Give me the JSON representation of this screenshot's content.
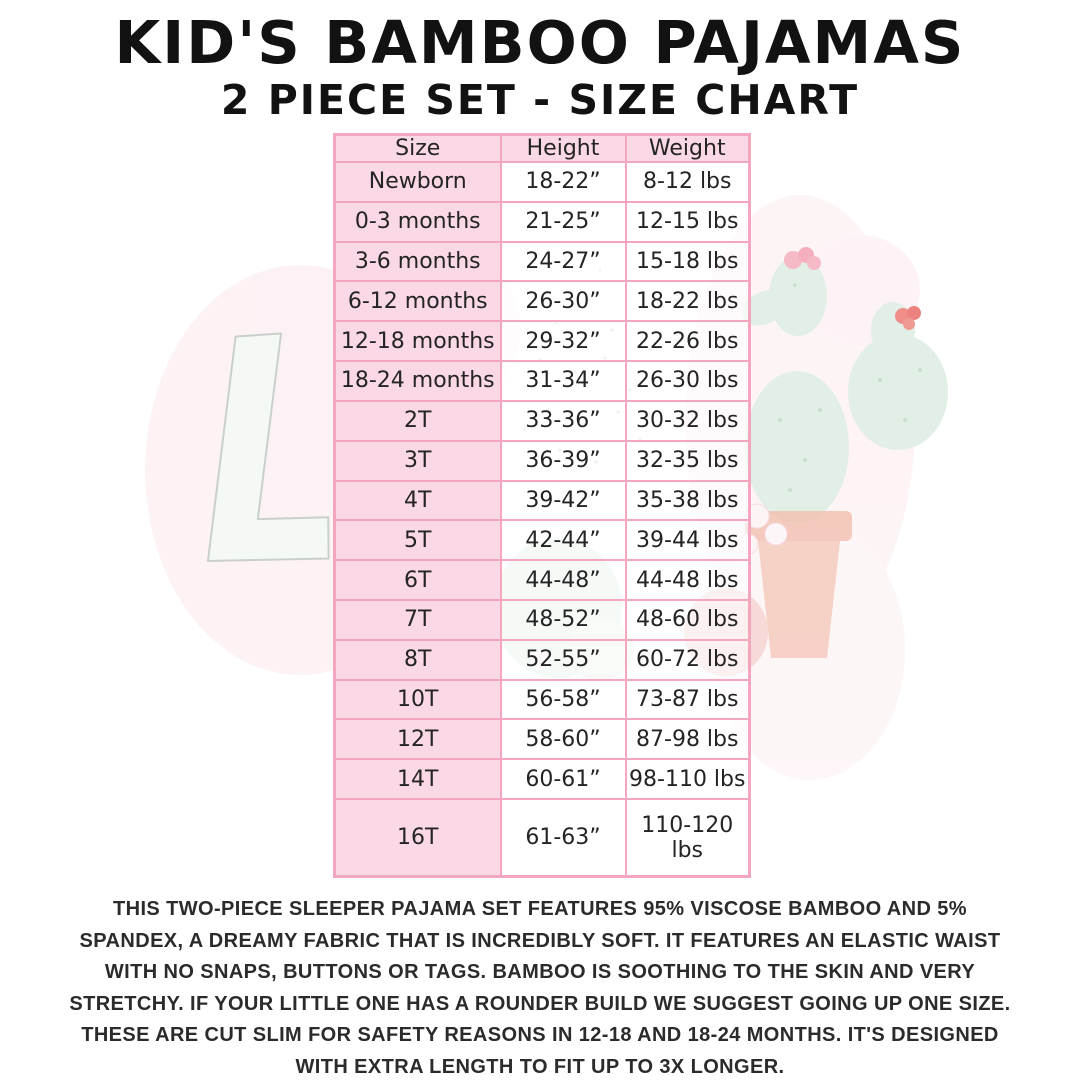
{
  "header": {
    "title": "KID'S BAMBOO PAJAMAS",
    "subtitle": "2 PIECE SET - SIZE CHART"
  },
  "size_chart": {
    "columns": [
      "Size",
      "Height",
      "Weight"
    ],
    "rows": [
      {
        "size": "Newborn",
        "height": "18-22”",
        "weight": "8-12 lbs"
      },
      {
        "size": "0-3 months",
        "height": "21-25”",
        "weight": "12-15 lbs"
      },
      {
        "size": "3-6 months",
        "height": "24-27”",
        "weight": "15-18 lbs"
      },
      {
        "size": "6-12 months",
        "height": "26-30”",
        "weight": "18-22 lbs"
      },
      {
        "size": "12-18 months",
        "height": "29-32”",
        "weight": "22-26 lbs"
      },
      {
        "size": "18-24 months",
        "height": "31-34”",
        "weight": "26-30 lbs"
      },
      {
        "size": "2T",
        "height": "33-36”",
        "weight": "30-32 lbs"
      },
      {
        "size": "3T",
        "height": "36-39”",
        "weight": "32-35 lbs"
      },
      {
        "size": "4T",
        "height": "39-42”",
        "weight": "35-38 lbs"
      },
      {
        "size": "5T",
        "height": "42-44”",
        "weight": "39-44 lbs"
      },
      {
        "size": "6T",
        "height": "44-48”",
        "weight": "44-48 lbs"
      },
      {
        "size": "7T",
        "height": "48-52”",
        "weight": "48-60 lbs"
      },
      {
        "size": "8T",
        "height": "52-55”",
        "weight": "60-72 lbs"
      },
      {
        "size": "10T",
        "height": "56-58”",
        "weight": "73-87 lbs"
      },
      {
        "size": "12T",
        "height": "58-60”",
        "weight": "87-98 lbs"
      },
      {
        "size": "14T",
        "height": "60-61”",
        "weight": "98-110 lbs"
      },
      {
        "size": "16T",
        "height": "61-63”",
        "weight": "110-120 lbs"
      }
    ]
  },
  "chart_data": {
    "type": "table",
    "title": "KID'S BAMBOO PAJAMAS 2 PIECE SET - SIZE CHART",
    "columns": [
      "Size",
      "Height",
      "Weight"
    ],
    "rows": [
      [
        "Newborn",
        "18-22”",
        "8-12 lbs"
      ],
      [
        "0-3 months",
        "21-25”",
        "12-15 lbs"
      ],
      [
        "3-6 months",
        "24-27”",
        "15-18 lbs"
      ],
      [
        "6-12 months",
        "26-30”",
        "18-22 lbs"
      ],
      [
        "12-18 months",
        "29-32”",
        "22-26 lbs"
      ],
      [
        "18-24 months",
        "31-34”",
        "26-30 lbs"
      ],
      [
        "2T",
        "33-36”",
        "30-32 lbs"
      ],
      [
        "3T",
        "36-39”",
        "32-35 lbs"
      ],
      [
        "4T",
        "39-42”",
        "35-38 lbs"
      ],
      [
        "5T",
        "42-44”",
        "39-44 lbs"
      ],
      [
        "6T",
        "44-48”",
        "44-48 lbs"
      ],
      [
        "7T",
        "48-52”",
        "48-60 lbs"
      ],
      [
        "8T",
        "52-55”",
        "60-72 lbs"
      ],
      [
        "10T",
        "56-58”",
        "73-87 lbs"
      ],
      [
        "12T",
        "58-60”",
        "87-98 lbs"
      ],
      [
        "14T",
        "60-61”",
        "98-110 lbs"
      ],
      [
        "16T",
        "61-63”",
        "110-120 lbs"
      ]
    ]
  },
  "description": "THIS TWO-PIECE SLEEPER PAJAMA SET FEATURES 95% VISCOSE BAMBOO AND 5%\nSPANDEX, A DREAMY FABRIC THAT IS INCREDIBLY SOFT. IT FEATURES AN ELASTIC WAIST\nWITH NO SNAPS, BUTTONS OR TAGS. BAMBOO IS SOOTHING TO THE SKIN AND VERY\nSTRETCHY. IF YOUR LITTLE ONE HAS A ROUNDER BUILD WE SUGGEST GOING UP ONE SIZE.\nTHESE ARE CUT SLIM FOR SAFETY REASONS IN 12-18 AND 18-24 MONTHS. IT'S DESIGNED\nWITH EXTRA LENGTH TO FIT UP TO 3X LONGER.",
  "watermark": {
    "letter_mark": "L",
    "icons": [
      "prickly-pear-cactus",
      "terracotta-pot",
      "pink-flower",
      "red-flower",
      "white-flowers"
    ]
  },
  "colors": {
    "border_pink": "#f3a6be",
    "cell_pink": "#fcdbe7",
    "ink": "#1d1d1d",
    "cactus_green": "#e2efe6",
    "pot_salmon": "#f5c8ba",
    "flower_pink": "#f6b9c6",
    "flower_red": "#ef8e88"
  }
}
